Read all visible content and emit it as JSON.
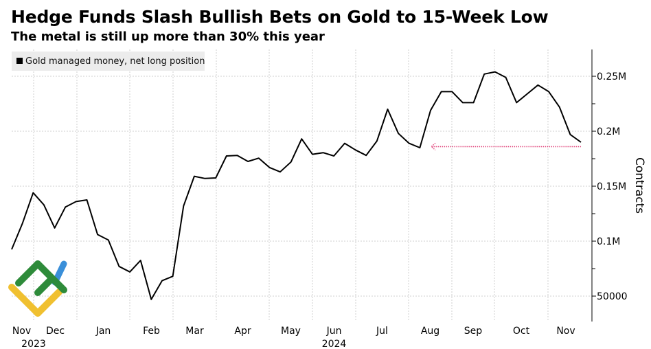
{
  "chart_data": {
    "type": "line",
    "title": "Hedge Funds Slash Bullish Bets on Gold to 15-Week Low",
    "subtitle": "The metal is still up more than 30% this year",
    "legend": {
      "label": "Gold managed money, net long position",
      "placement": "top-left"
    },
    "ylabel": "Contracts",
    "xlabel": "",
    "ylim": [
      25000,
      272500
    ],
    "y_ticks": [
      {
        "value": 50000,
        "label": "50000"
      },
      {
        "value": 100000,
        "label": "0.1M"
      },
      {
        "value": 150000,
        "label": "0.15M"
      },
      {
        "value": 200000,
        "label": "0.2M"
      },
      {
        "value": 250000,
        "label": "0.25M"
      }
    ],
    "x_month_labels": [
      "Nov",
      "Dec",
      "Jan",
      "Feb",
      "Mar",
      "Apr",
      "May",
      "Jun",
      "Jul",
      "Aug",
      "Sep",
      "Oct",
      "Nov"
    ],
    "x_year_labels": [
      {
        "label": "2023",
        "month_index": 0.5
      },
      {
        "label": "2024",
        "month_index": 7
      }
    ],
    "grid": true,
    "series": [
      {
        "name": "Gold managed money, net long position",
        "color": "#000000",
        "frequency": "weekly",
        "values": [
          92500,
          116000,
          144000,
          133000,
          112000,
          131000,
          136000,
          137500,
          106000,
          101000,
          77000,
          72000,
          82500,
          47000,
          64000,
          68000,
          132000,
          159000,
          157000,
          157500,
          177500,
          178000,
          172500,
          175500,
          167000,
          163000,
          172000,
          193000,
          179000,
          180500,
          177500,
          189000,
          183000,
          178000,
          191000,
          220000,
          198000,
          189000,
          185000,
          219000,
          236000,
          236000,
          226000,
          226000,
          252000,
          254000,
          249000,
          226000,
          234000,
          242000,
          236000,
          222000,
          197000,
          190000
        ]
      }
    ],
    "annotation": {
      "type": "dotted-arrow",
      "color": "#e0457b",
      "value": 186000,
      "direction": "left",
      "from_index": 53,
      "to_index": 39
    }
  },
  "logo": {
    "colors": {
      "green": "#2e8b3a",
      "blue": "#3a8fd9",
      "yellow": "#f0c030"
    }
  }
}
